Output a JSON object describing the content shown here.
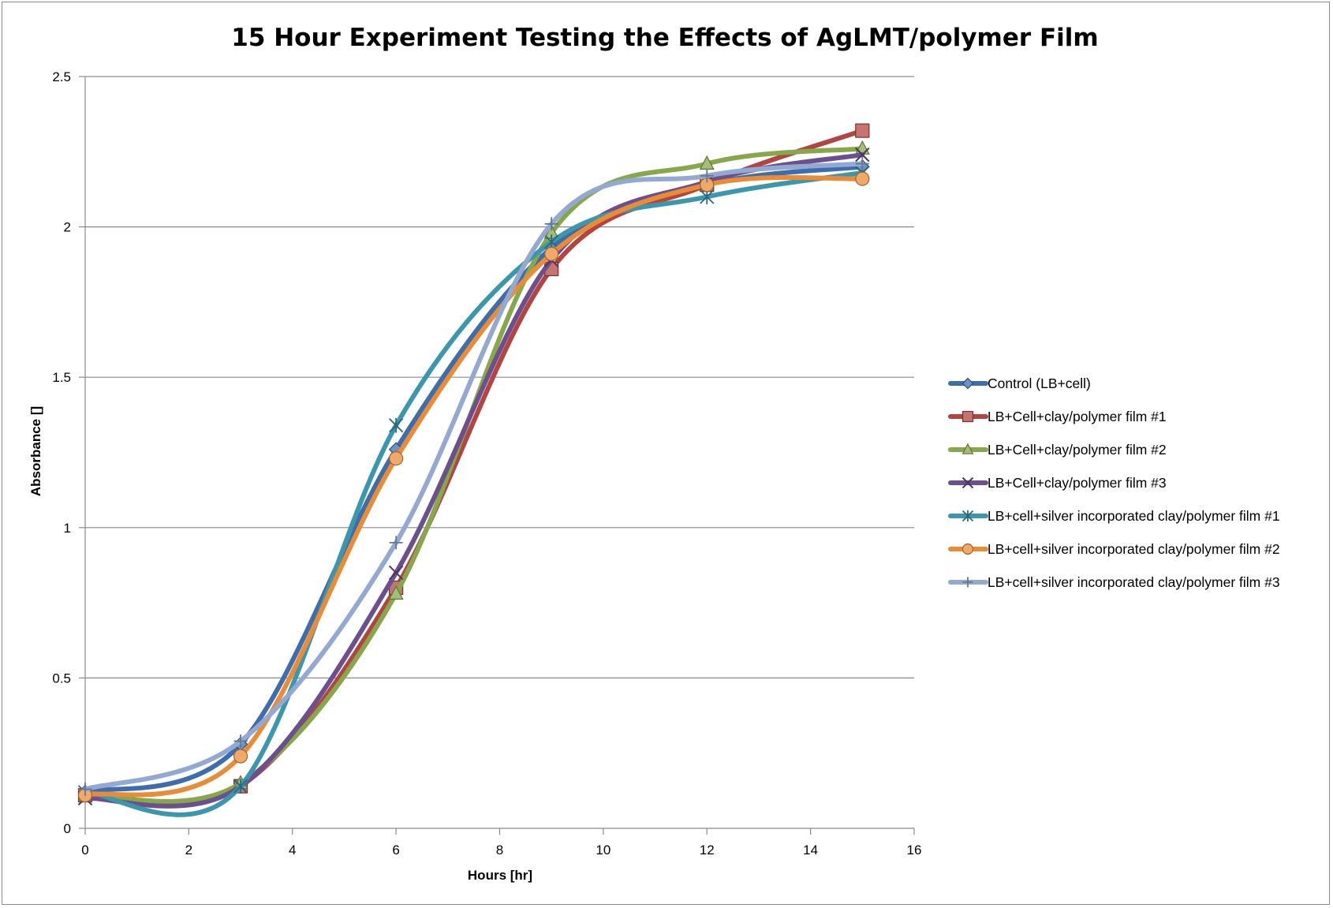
{
  "chart_data": {
    "type": "line",
    "title": "15 Hour Experiment Testing the Effects of AgLMT/polymer Film",
    "xlabel": "Hours [hr]",
    "ylabel": "Absorbance []",
    "xlim": [
      0,
      16
    ],
    "ylim": [
      0,
      2.5
    ],
    "xticks": [
      0,
      2,
      4,
      6,
      8,
      10,
      12,
      14,
      16
    ],
    "yticks": [
      0,
      0.5,
      1,
      1.5,
      2,
      2.5
    ],
    "x_tick_labels": [
      "0",
      "2",
      "4",
      "6",
      "8",
      "10",
      "12",
      "14",
      "16"
    ],
    "y_tick_labels": [
      "0",
      "0.5",
      "1",
      "1.5",
      "2",
      "2.5"
    ],
    "grid": "horizontal",
    "legend_position": "right",
    "x": [
      0,
      3,
      6,
      9,
      12,
      15
    ],
    "series": [
      {
        "name": "Control (LB+cell)",
        "color": "#3d6dac",
        "marker": "diamond",
        "values": [
          0.12,
          0.28,
          1.26,
          1.93,
          2.14,
          2.2
        ]
      },
      {
        "name": "LB+Cell+clay/polymer film #1",
        "color": "#b24540",
        "marker": "square",
        "values": [
          0.11,
          0.14,
          0.8,
          1.86,
          2.14,
          2.32
        ]
      },
      {
        "name": "LB+Cell+clay/polymer film #2",
        "color": "#86a84a",
        "marker": "triangle",
        "values": [
          0.11,
          0.15,
          0.78,
          1.98,
          2.21,
          2.26
        ]
      },
      {
        "name": "LB+Cell+clay/polymer film #3",
        "color": "#6c4f8e",
        "marker": "x",
        "values": [
          0.1,
          0.14,
          0.85,
          1.89,
          2.15,
          2.24
        ]
      },
      {
        "name": "LB+cell+silver incorporated clay/polymer film #1",
        "color": "#3b97ae",
        "marker": "star",
        "values": [
          0.12,
          0.14,
          1.34,
          1.95,
          2.1,
          2.18
        ]
      },
      {
        "name": "LB+cell+silver incorporated clay/polymer film #2",
        "color": "#ea8c36",
        "marker": "circle",
        "values": [
          0.11,
          0.24,
          1.23,
          1.91,
          2.14,
          2.16
        ]
      },
      {
        "name": "LB+cell+silver incorporated clay/polymer film #3",
        "color": "#93a9d2",
        "marker": "plus",
        "values": [
          0.13,
          0.29,
          0.95,
          2.01,
          2.17,
          2.21
        ]
      }
    ]
  }
}
